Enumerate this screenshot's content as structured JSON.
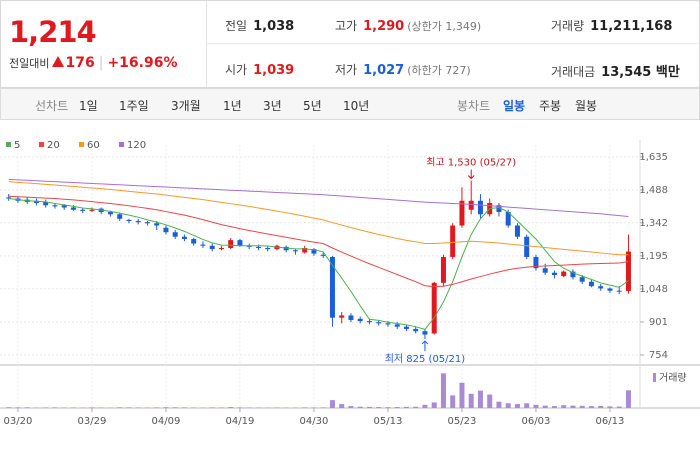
{
  "header": {
    "price": "1,214",
    "change_label": "전일대비",
    "change": "176",
    "rate": "+16.96%",
    "info": [
      {
        "label": "전일",
        "value": "1,038",
        "color": "#222"
      },
      {
        "label": "고가",
        "value": "1,290",
        "extra": "(상한가 1,349)",
        "color": "#e0191e"
      },
      {
        "label": "거래량",
        "value": "11,211,168",
        "color": "#222"
      },
      {
        "label": "시가",
        "value": "1,039",
        "color": "#e0191e"
      },
      {
        "label": "저가",
        "value": "1,027",
        "extra": "(하한가 727)",
        "color": "#1a5ed8"
      },
      {
        "label": "거래대금",
        "value": "13,545 백만",
        "color": "#222"
      }
    ]
  },
  "toolbar": {
    "line_label": "선차트",
    "periods": [
      "1일",
      "1주일",
      "3개월",
      "1년",
      "3년",
      "5년",
      "10년"
    ],
    "candle_label": "봉차트",
    "candle_options": [
      "일봉",
      "주봉",
      "월봉"
    ],
    "selected": "일봉"
  },
  "chart_data": {
    "type": "candlestick",
    "categories": [
      null,
      "03/20",
      null,
      null,
      null,
      null,
      null,
      null,
      null,
      "03/29",
      null,
      null,
      null,
      null,
      null,
      null,
      null,
      "04/09",
      null,
      null,
      null,
      null,
      null,
      null,
      null,
      "04/19",
      null,
      null,
      null,
      null,
      null,
      null,
      null,
      "04/30",
      null,
      null,
      null,
      null,
      null,
      null,
      null,
      "05/13",
      null,
      null,
      null,
      null,
      null,
      null,
      null,
      "05/23",
      null,
      null,
      null,
      null,
      null,
      null,
      null,
      "06/03",
      null,
      null,
      null,
      null,
      null,
      null,
      null,
      "06/13",
      null,
      null
    ],
    "ohlc": [
      [
        1455,
        1470,
        1440,
        1450
      ],
      [
        1450,
        1460,
        1430,
        1440
      ],
      [
        1445,
        1455,
        1425,
        1435
      ],
      [
        1440,
        1450,
        1420,
        1430
      ],
      [
        1435,
        1445,
        1410,
        1420
      ],
      [
        1420,
        1430,
        1405,
        1415
      ],
      [
        1420,
        1425,
        1400,
        1410
      ],
      [
        1410,
        1420,
        1395,
        1400
      ],
      [
        1400,
        1410,
        1385,
        1395
      ],
      [
        1395,
        1410,
        1390,
        1400
      ],
      [
        1405,
        1410,
        1380,
        1390
      ],
      [
        1390,
        1395,
        1370,
        1380
      ],
      [
        1380,
        1385,
        1350,
        1360
      ],
      [
        1355,
        1360,
        1340,
        1350
      ],
      [
        1350,
        1360,
        1335,
        1345
      ],
      [
        1345,
        1350,
        1330,
        1340
      ],
      [
        1340,
        1350,
        1310,
        1330
      ],
      [
        1320,
        1330,
        1290,
        1300
      ],
      [
        1300,
        1310,
        1270,
        1280
      ],
      [
        1280,
        1290,
        1260,
        1270
      ],
      [
        1270,
        1275,
        1240,
        1250
      ],
      [
        1245,
        1260,
        1230,
        1240
      ],
      [
        1240,
        1250,
        1215,
        1225
      ],
      [
        1225,
        1240,
        1220,
        1230
      ],
      [
        1230,
        1275,
        1225,
        1265
      ],
      [
        1265,
        1270,
        1235,
        1240
      ],
      [
        1240,
        1250,
        1225,
        1235
      ],
      [
        1235,
        1245,
        1220,
        1230
      ],
      [
        1230,
        1240,
        1215,
        1225
      ],
      [
        1225,
        1245,
        1220,
        1240
      ],
      [
        1235,
        1240,
        1210,
        1220
      ],
      [
        1220,
        1225,
        1200,
        1215
      ],
      [
        1210,
        1240,
        1205,
        1230
      ],
      [
        1225,
        1230,
        1195,
        1205
      ],
      [
        1200,
        1210,
        1185,
        1195
      ],
      [
        1190,
        1195,
        880,
        920
      ],
      [
        920,
        945,
        895,
        930
      ],
      [
        930,
        940,
        900,
        910
      ],
      [
        915,
        925,
        895,
        905
      ],
      [
        905,
        915,
        890,
        900
      ],
      [
        900,
        910,
        885,
        895
      ],
      [
        895,
        905,
        880,
        890
      ],
      [
        890,
        900,
        870,
        880
      ],
      [
        880,
        890,
        860,
        870
      ],
      [
        870,
        880,
        850,
        860
      ],
      [
        860,
        870,
        825,
        845
      ],
      [
        850,
        1080,
        845,
        1075
      ],
      [
        1075,
        1200,
        1060,
        1190
      ],
      [
        1190,
        1340,
        1180,
        1330
      ],
      [
        1330,
        1500,
        1320,
        1440
      ],
      [
        1400,
        1530,
        1380,
        1440
      ],
      [
        1440,
        1470,
        1360,
        1380
      ],
      [
        1380,
        1450,
        1370,
        1430
      ],
      [
        1420,
        1430,
        1370,
        1390
      ],
      [
        1390,
        1400,
        1320,
        1330
      ],
      [
        1330,
        1340,
        1270,
        1280
      ],
      [
        1280,
        1290,
        1180,
        1190
      ],
      [
        1190,
        1200,
        1130,
        1140
      ],
      [
        1140,
        1160,
        1110,
        1120
      ],
      [
        1120,
        1130,
        1095,
        1110
      ],
      [
        1105,
        1130,
        1100,
        1125
      ],
      [
        1125,
        1135,
        1090,
        1100
      ],
      [
        1100,
        1110,
        1070,
        1080
      ],
      [
        1080,
        1090,
        1055,
        1060
      ],
      [
        1060,
        1070,
        1040,
        1050
      ],
      [
        1050,
        1055,
        1030,
        1040
      ],
      [
        1040,
        1060,
        1025,
        1038
      ],
      [
        1039,
        1290,
        1027,
        1214
      ]
    ],
    "up_color": "#e0191e",
    "down_color": "#1a5ed8",
    "series": [
      {
        "name": "5",
        "color": "#4caf50",
        "values": [
          1450,
          1445,
          1440,
          1438,
          1435,
          1428,
          1422,
          1415,
          1408,
          1404,
          1399,
          1393,
          1385,
          1376,
          1367,
          1355,
          1345,
          1333,
          1319,
          1304,
          1286,
          1268,
          1253,
          1243,
          1242,
          1240,
          1240,
          1240,
          1239,
          1234,
          1230,
          1226,
          1226,
          1222,
          1213,
          1153,
          1096,
          1037,
          973,
          913,
          908,
          900,
          894,
          888,
          880,
          868,
          920,
          990,
          1080,
          1190,
          1290,
          1360,
          1405,
          1410,
          1390,
          1350,
          1310,
          1270,
          1220,
          1170,
          1140,
          1120,
          1105,
          1090,
          1075,
          1065,
          1055,
          1085
        ]
      },
      {
        "name": "20",
        "color": "#e8474a",
        "values": [
          1460,
          1458,
          1456,
          1454,
          1452,
          1450,
          1447,
          1444,
          1440,
          1436,
          1432,
          1428,
          1423,
          1418,
          1412,
          1406,
          1400,
          1392,
          1384,
          1376,
          1366,
          1356,
          1345,
          1334,
          1325,
          1316,
          1308,
          1300,
          1292,
          1285,
          1278,
          1270,
          1263,
          1256,
          1250,
          1230,
          1212,
          1194,
          1177,
          1160,
          1144,
          1128,
          1112,
          1096,
          1080,
          1062,
          1058,
          1060,
          1068,
          1080,
          1092,
          1103,
          1114,
          1124,
          1133,
          1140,
          1145,
          1148,
          1150,
          1152,
          1154,
          1156,
          1158,
          1160,
          1161,
          1162,
          1163,
          1170
        ]
      },
      {
        "name": "60",
        "color": "#f39a2a",
        "values": [
          1525,
          1522,
          1519,
          1516,
          1513,
          1510,
          1507,
          1504,
          1500,
          1497,
          1494,
          1490,
          1486,
          1482,
          1478,
          1474,
          1470,
          1465,
          1460,
          1455,
          1450,
          1445,
          1439,
          1433,
          1427,
          1421,
          1415,
          1408,
          1401,
          1394,
          1387,
          1379,
          1371,
          1363,
          1355,
          1343,
          1332,
          1321,
          1310,
          1300,
          1290,
          1281,
          1272,
          1264,
          1258,
          1250,
          1250,
          1252,
          1255,
          1258,
          1260,
          1258,
          1255,
          1252,
          1248,
          1244,
          1240,
          1236,
          1232,
          1228,
          1224,
          1220,
          1216,
          1212,
          1208,
          1204,
          1200,
          1200
        ]
      },
      {
        "name": "120",
        "color": "#a66fd1",
        "values": [
          1535,
          1533,
          1531,
          1529,
          1527,
          1525,
          1523,
          1521,
          1519,
          1517,
          1515,
          1513,
          1511,
          1509,
          1507,
          1505,
          1503,
          1501,
          1499,
          1497,
          1495,
          1493,
          1491,
          1489,
          1487,
          1485,
          1483,
          1481,
          1479,
          1477,
          1475,
          1473,
          1471,
          1469,
          1467,
          1464,
          1461,
          1458,
          1455,
          1452,
          1449,
          1446,
          1443,
          1440,
          1437,
          1434,
          1432,
          1430,
          1428,
          1426,
          1424,
          1421,
          1418,
          1415,
          1412,
          1409,
          1406,
          1403,
          1400,
          1397,
          1394,
          1391,
          1388,
          1385,
          1382,
          1378,
          1374,
          1370
        ]
      }
    ],
    "ylim": [
      723,
      1688
    ],
    "yticks": [
      {
        "value": 1635,
        "label": "1,635"
      },
      {
        "value": 1488,
        "label": "1,488"
      },
      {
        "value": 1342,
        "label": "1,342"
      },
      {
        "value": 1195,
        "label": "1,195"
      },
      {
        "value": 1048,
        "label": "1,048"
      },
      901,
      754
    ],
    "grid": true,
    "annotations": {
      "high": "최고 1,530 (05/27)",
      "low": "최저 825 (05/21)"
    },
    "volume": {
      "name": "거래량",
      "color": "#a98bd5",
      "ylim": [
        0,
        26000000
      ],
      "values": [
        500000,
        400000,
        450000,
        300000,
        350000,
        400000,
        300000,
        350000,
        300000,
        400000,
        350000,
        300000,
        450000,
        400000,
        350000,
        300000,
        400000,
        500000,
        450000,
        400000,
        350000,
        300000,
        400000,
        350000,
        600000,
        400000,
        350000,
        300000,
        300000,
        350000,
        300000,
        300000,
        400000,
        350000,
        400000,
        5000000,
        2500000,
        1200000,
        800000,
        700000,
        600000,
        500000,
        600000,
        700000,
        800000,
        2000000,
        3500000,
        22000000,
        8000000,
        16000000,
        9000000,
        11000000,
        8500000,
        4000000,
        3000000,
        2500000,
        3000000,
        2000000,
        1500000,
        1200000,
        1800000,
        1500000,
        1400000,
        1200000,
        1300000,
        1000000,
        900000,
        11211168
      ]
    }
  }
}
